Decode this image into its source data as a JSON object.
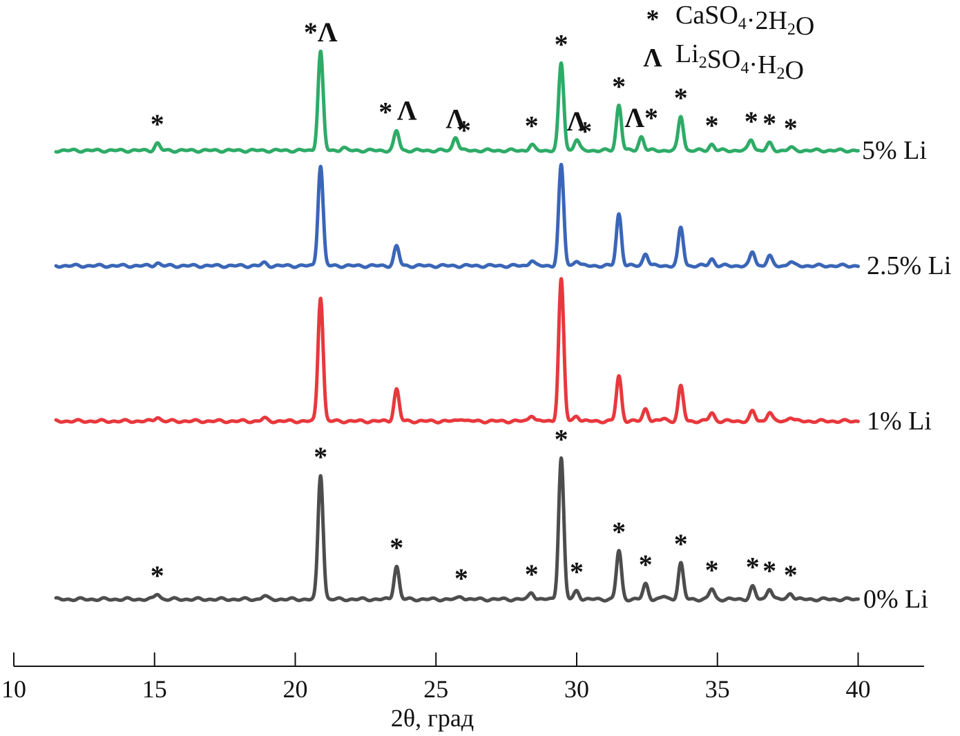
{
  "chart_data": {
    "type": "line",
    "xlabel": "2θ, град",
    "ylabel": "",
    "xlim": [
      10,
      42.3
    ],
    "x_ticks": [
      10,
      15,
      20,
      25,
      30,
      35,
      40
    ],
    "legend": {
      "placement": "top-right",
      "entries": [
        {
          "symbol": "*",
          "formula": [
            [
              "CaSO",
              ""
            ],
            [
              "4",
              "sub"
            ],
            [
              "·2H",
              ""
            ],
            [
              "2",
              "sub"
            ],
            [
              "O",
              ""
            ]
          ]
        },
        {
          "symbol": "Λ",
          "formula": [
            [
              "Li",
              ""
            ],
            [
              "2",
              "sub"
            ],
            [
              "SO",
              ""
            ],
            [
              "4",
              "sub"
            ],
            [
              "·H",
              ""
            ],
            [
              "2",
              "sub"
            ],
            [
              "O",
              ""
            ]
          ]
        }
      ]
    },
    "series": [
      {
        "name": "0% Li",
        "color": "#4d4d4d",
        "peaks": [
          [
            15.1,
            8
          ],
          [
            18.9,
            5
          ],
          [
            20.9,
            180
          ],
          [
            23.6,
            48
          ],
          [
            25.9,
            4
          ],
          [
            28.4,
            10
          ],
          [
            29.45,
            205
          ],
          [
            30.0,
            12
          ],
          [
            31.5,
            70
          ],
          [
            32.45,
            22
          ],
          [
            33.1,
            4
          ],
          [
            33.7,
            52
          ],
          [
            34.8,
            15
          ],
          [
            36.25,
            18
          ],
          [
            36.85,
            16
          ],
          [
            37.6,
            9
          ]
        ],
        "markers": [
          [
            15.1,
            "*"
          ],
          [
            20.9,
            "*"
          ],
          [
            23.6,
            "*"
          ],
          [
            25.9,
            "*"
          ],
          [
            28.4,
            "*"
          ],
          [
            29.45,
            "*"
          ],
          [
            30.0,
            "*"
          ],
          [
            31.5,
            "*"
          ],
          [
            32.45,
            "*"
          ],
          [
            33.7,
            "*"
          ],
          [
            34.8,
            "*"
          ],
          [
            36.25,
            "*"
          ],
          [
            36.85,
            "*"
          ],
          [
            37.6,
            "*"
          ]
        ]
      },
      {
        "name": "1% Li",
        "color": "#e8383d",
        "peaks": [
          [
            15.1,
            6
          ],
          [
            18.9,
            4
          ],
          [
            20.9,
            180
          ],
          [
            23.6,
            46
          ],
          [
            25.9,
            4
          ],
          [
            28.4,
            9
          ],
          [
            29.45,
            205
          ],
          [
            30.0,
            8
          ],
          [
            31.5,
            65
          ],
          [
            32.45,
            18
          ],
          [
            33.1,
            4
          ],
          [
            33.7,
            50
          ],
          [
            34.8,
            12
          ],
          [
            36.25,
            14
          ],
          [
            36.85,
            13
          ],
          [
            37.6,
            6
          ]
        ],
        "markers": []
      },
      {
        "name": "2.5% Li",
        "color": "#3a66b7",
        "peaks": [
          [
            15.1,
            4
          ],
          [
            18.9,
            4
          ],
          [
            20.9,
            145
          ],
          [
            23.6,
            28
          ],
          [
            28.4,
            8
          ],
          [
            29.45,
            145
          ],
          [
            30.0,
            8
          ],
          [
            31.5,
            75
          ],
          [
            32.45,
            18
          ],
          [
            33.7,
            55
          ],
          [
            34.8,
            10
          ],
          [
            36.25,
            20
          ],
          [
            36.85,
            14
          ],
          [
            37.6,
            6
          ]
        ],
        "markers": []
      },
      {
        "name": "5% Li",
        "color": "#2eab67",
        "peaks": [
          [
            15.1,
            10
          ],
          [
            20.9,
            143
          ],
          [
            21.7,
            4
          ],
          [
            23.6,
            28
          ],
          [
            25.7,
            20
          ],
          [
            28.4,
            8
          ],
          [
            29.45,
            126
          ],
          [
            30.0,
            16
          ],
          [
            31.5,
            66
          ],
          [
            32.3,
            20
          ],
          [
            33.7,
            50
          ],
          [
            34.8,
            9
          ],
          [
            36.2,
            16
          ],
          [
            36.85,
            10
          ],
          [
            37.6,
            4
          ]
        ],
        "markers": [
          [
            15.1,
            "*"
          ],
          [
            20.9,
            "*Λ"
          ],
          [
            23.6,
            "*"
          ],
          [
            23.6,
            "Λ"
          ],
          [
            25.7,
            "Λ"
          ],
          [
            26.0,
            "*"
          ],
          [
            28.4,
            "*"
          ],
          [
            29.45,
            "*"
          ],
          [
            30.0,
            "Λ"
          ],
          [
            30.3,
            "*"
          ],
          [
            31.5,
            "*"
          ],
          [
            32.3,
            "Λ*"
          ],
          [
            33.7,
            "*"
          ],
          [
            34.8,
            "*"
          ],
          [
            36.2,
            "*"
          ],
          [
            36.85,
            "*"
          ],
          [
            37.6,
            "*"
          ]
        ]
      }
    ]
  }
}
